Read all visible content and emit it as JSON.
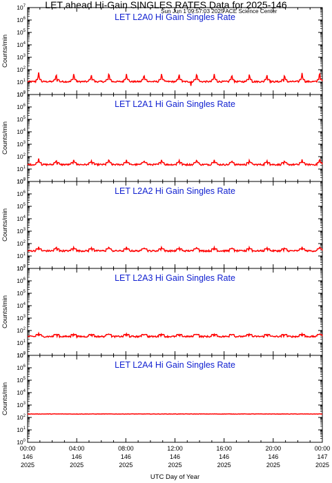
{
  "header": {
    "title": "LET ahead Hi-Gain SINGLES RATES Data for 2025-146",
    "timestamp": "Sun Jun  1 09:57:03 2025 ACE Science Center"
  },
  "colors": {
    "trace": "#ff0000",
    "panel_title": "#1020d0",
    "axes": "#000000"
  },
  "chart_data": [
    {
      "type": "line",
      "title": "LET L2A0 Hi Gain Singles Rate",
      "ylabel": "Counts/min",
      "yscale": "log",
      "ylim": [
        1,
        10000000
      ],
      "xlim": [
        "00:00 146 2025",
        "00:00 147 2025"
      ],
      "series": [
        {
          "baseline": 11,
          "spikes": [
            60,
            45,
            50,
            40,
            55,
            45,
            40,
            50,
            45,
            50,
            45,
            40,
            45,
            40,
            40,
            55,
            60
          ],
          "dips": [
            [
              13.3,
              5
            ]
          ]
        }
      ]
    },
    {
      "type": "line",
      "title": "LET L2A1 Hi Gain Singles Rate",
      "ylabel": "Counts/min",
      "yscale": "log",
      "ylim": [
        1,
        10000000
      ],
      "xlim": [
        "00:00 146 2025",
        "00:00 147 2025"
      ],
      "series": [
        {
          "baseline": 23,
          "spikes": [
            70,
            55,
            60,
            50,
            65,
            55,
            50,
            60,
            55,
            60,
            55,
            50,
            55,
            50,
            50,
            60,
            70
          ],
          "dips": []
        }
      ]
    },
    {
      "type": "line",
      "title": "LET L2A2 Hi Gain Singles Rate",
      "ylabel": "Counts/min",
      "yscale": "log",
      "ylim": [
        1,
        10000000
      ],
      "xlim": [
        "00:00 146 2025",
        "00:00 147 2025"
      ],
      "series": [
        {
          "baseline": 26,
          "spikes": [
            55,
            60,
            55,
            50,
            60,
            55,
            50,
            55,
            50,
            55,
            50,
            50,
            55,
            50,
            50,
            55,
            60
          ],
          "dips": []
        }
      ]
    },
    {
      "type": "line",
      "title": "LET L2A3 Hi Gain Singles Rate",
      "ylabel": "Counts/min",
      "yscale": "log",
      "ylim": [
        1,
        10000000
      ],
      "xlim": [
        "00:00 146 2025",
        "00:00 147 2025"
      ],
      "series": [
        {
          "baseline": 33,
          "spikes": [
            60,
            55,
            55,
            50,
            60,
            55,
            50,
            55,
            50,
            55,
            50,
            50,
            55,
            50,
            50,
            55,
            60
          ],
          "dips": []
        }
      ]
    },
    {
      "type": "line",
      "title": "LET L2A4 Hi Gain Singles Rate",
      "ylabel": "Counts/min",
      "yscale": "log",
      "ylim": [
        1,
        10000000
      ],
      "xlim": [
        "00:00 146 2025",
        "00:00 147 2025"
      ],
      "series": [
        {
          "baseline": 190,
          "spikes": [],
          "dips": []
        }
      ]
    }
  ],
  "x_axis": {
    "label": "UTC Day of Year",
    "ticks": [
      {
        "time": "00:00",
        "day": "146",
        "year": "2025",
        "hour": 0
      },
      {
        "time": "04:00",
        "day": "146",
        "year": "2025",
        "hour": 4
      },
      {
        "time": "08:00",
        "day": "146",
        "year": "2025",
        "hour": 8
      },
      {
        "time": "12:00",
        "day": "146",
        "year": "2025",
        "hour": 12
      },
      {
        "time": "16:00",
        "day": "146",
        "year": "2025",
        "hour": 16
      },
      {
        "time": "20:00",
        "day": "146",
        "year": "2025",
        "hour": 20
      },
      {
        "time": "00:00",
        "day": "147",
        "year": "2025",
        "hour": 24
      }
    ]
  },
  "y_axis": {
    "ticks": [
      {
        "base": "10",
        "exp": "0",
        "power": 0
      },
      {
        "base": "10",
        "exp": "1",
        "power": 1
      },
      {
        "base": "10",
        "exp": "2",
        "power": 2
      },
      {
        "base": "10",
        "exp": "3",
        "power": 3
      },
      {
        "base": "10",
        "exp": "4",
        "power": 4
      },
      {
        "base": "10",
        "exp": "5",
        "power": 5
      },
      {
        "base": "10",
        "exp": "6",
        "power": 6
      },
      {
        "base": "10",
        "exp": "7",
        "power": 7
      }
    ]
  }
}
